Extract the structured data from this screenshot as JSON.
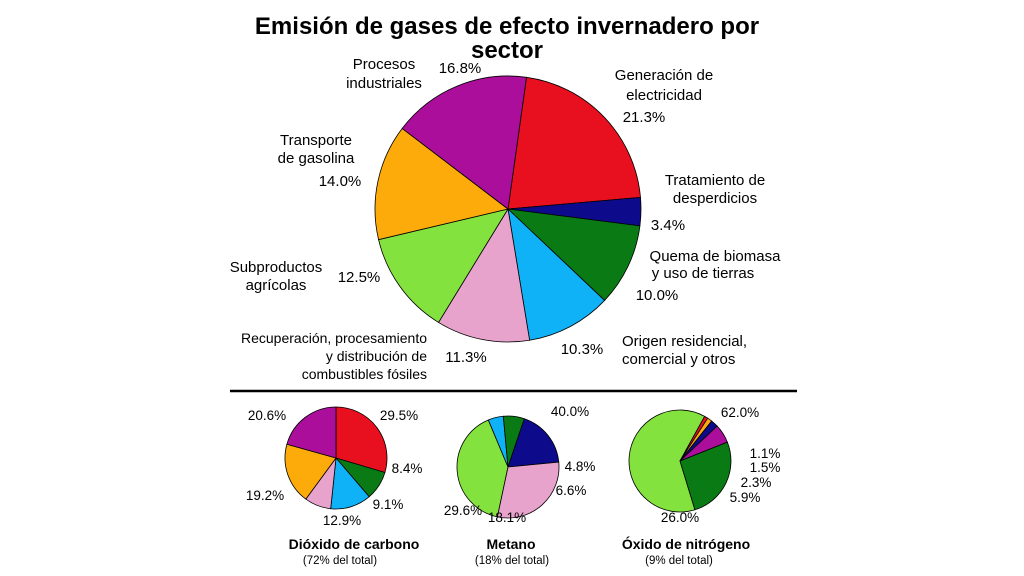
{
  "chart_data": [
    {
      "type": "pie",
      "title_line1": "Emisión de gases de efecto invernadero por",
      "title_line2": "sector",
      "slices": [
        {
          "label_lines": [
            "Generación de",
            "electricidad"
          ],
          "value": 21.3,
          "value_label": "21.3%",
          "color": "#e8101e"
        },
        {
          "label_lines": [
            "Tratamiento de",
            "desperdicios"
          ],
          "value": 3.4,
          "value_label": "3.4%",
          "color": "#0d0a8c"
        },
        {
          "label_lines": [
            "Quema de biomasa",
            "y uso de tierras"
          ],
          "value": 10.0,
          "value_label": "10.0%",
          "color": "#097a14"
        },
        {
          "label_lines": [
            "Origen residencial,",
            "comercial y otros"
          ],
          "value": 10.3,
          "value_label": "10.3%",
          "color": "#10b2f7"
        },
        {
          "label_lines": [
            "Recuperación, procesamiento",
            "y distribución de",
            "combustibles fósiles"
          ],
          "value": 11.3,
          "value_label": "11.3%",
          "color": "#e8a3cc"
        },
        {
          "label_lines": [
            "Subproductos",
            "agrícolas"
          ],
          "value": 12.5,
          "value_label": "12.5%",
          "color": "#84e23e"
        },
        {
          "label_lines": [
            "Transporte",
            "de gasolina"
          ],
          "value": 14.0,
          "value_label": "14.0%",
          "color": "#fdaa0b"
        },
        {
          "label_lines": [
            "Procesos",
            "industriales"
          ],
          "value": 16.8,
          "value_label": "16.8%",
          "color": "#aa0e9a"
        }
      ]
    },
    {
      "type": "pie",
      "title": "Dióxido de carbono",
      "subtitle": "(72% del total)",
      "slices": [
        {
          "value": 29.5,
          "value_label": "29.5%",
          "color": "#e8101e"
        },
        {
          "value": 0.0,
          "value_label": "",
          "color": "#0d0a8c"
        },
        {
          "value": 9.1,
          "value_label": "9.1%",
          "color": "#097a14"
        },
        {
          "value": 12.9,
          "value_label": "12.9%",
          "color": "#10b2f7"
        },
        {
          "value": 8.4,
          "value_label": "8.4%",
          "color": "#e8a3cc"
        },
        {
          "value": 0.0,
          "value_label": "",
          "color": "#84e23e"
        },
        {
          "value": 19.2,
          "value_label": "19.2%",
          "color": "#fdaa0b"
        },
        {
          "value": 20.6,
          "value_label": "20.6%",
          "color": "#aa0e9a"
        }
      ]
    },
    {
      "type": "pie",
      "title": "Metano",
      "subtitle": "(18% del total)",
      "slices": [
        {
          "value": 40.0,
          "value_label": "40.0%",
          "color": "#84e23e"
        },
        {
          "value": 4.8,
          "value_label": "4.8%",
          "color": "#10b2f7"
        },
        {
          "value": 6.6,
          "value_label": "6.6%",
          "color": "#097a14"
        },
        {
          "value": 18.1,
          "value_label": "18.1%",
          "color": "#0d0a8c"
        },
        {
          "value": 29.6,
          "value_label": "29.6%",
          "color": "#e8a3cc"
        }
      ]
    },
    {
      "type": "pie",
      "title": "Óxido de nitrógeno",
      "subtitle": "(9% del total)",
      "slices": [
        {
          "value": 62.0,
          "value_label": "62.0%",
          "color": "#84e23e"
        },
        {
          "value": 1.1,
          "value_label": "1.1%",
          "color": "#e8101e"
        },
        {
          "value": 1.5,
          "value_label": "1.5%",
          "color": "#fdaa0b"
        },
        {
          "value": 2.3,
          "value_label": "2.3%",
          "color": "#0d0a8c"
        },
        {
          "value": 5.9,
          "value_label": "5.9%",
          "color": "#aa0e9a"
        },
        {
          "value": 26.0,
          "value_label": "26.0%",
          "color": "#097a14"
        }
      ]
    }
  ]
}
